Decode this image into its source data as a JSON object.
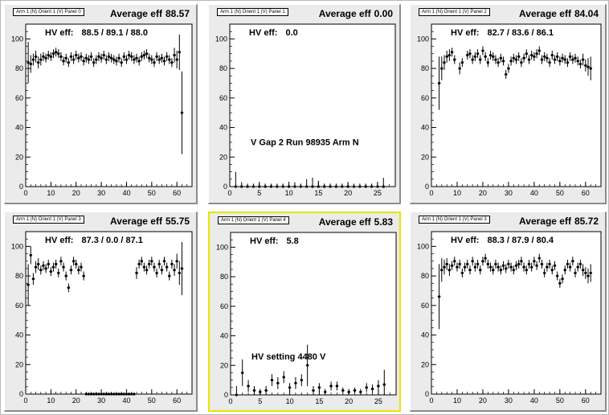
{
  "canvas": {
    "pads": [
      {
        "tag": "Arm 1 (N) Orient 1 (V) Panel 0",
        "average_label": "Average eff",
        "average_value": "88.57",
        "hv_label": "HV eff:",
        "hv_value": "88.5 / 89.1 / 88.0",
        "annotation": "",
        "selected": false,
        "chart_data": {
          "type": "scatter",
          "xlim": [
            0,
            66
          ],
          "ylim": [
            0,
            110
          ],
          "xticks": [
            0,
            10,
            20,
            30,
            40,
            50,
            60
          ],
          "yticks": [
            0,
            20,
            40,
            60,
            80,
            100
          ],
          "x": [
            1,
            2,
            3,
            4,
            5,
            6,
            7,
            8,
            9,
            10,
            11,
            12,
            13,
            14,
            15,
            16,
            17,
            18,
            19,
            20,
            21,
            22,
            23,
            24,
            25,
            26,
            27,
            28,
            29,
            30,
            31,
            32,
            33,
            34,
            35,
            36,
            37,
            38,
            39,
            40,
            41,
            42,
            43,
            44,
            45,
            46,
            47,
            48,
            49,
            50,
            51,
            52,
            53,
            54,
            55,
            56,
            57,
            58,
            59,
            60,
            61,
            62
          ],
          "y": [
            84,
            83,
            86,
            88,
            84,
            86,
            88,
            87,
            89,
            88,
            90,
            91,
            90,
            88,
            85,
            87,
            84,
            88,
            86,
            89,
            87,
            88,
            85,
            87,
            86,
            88,
            84,
            86,
            88,
            87,
            89,
            86,
            88,
            87,
            86,
            85,
            87,
            84,
            88,
            86,
            89,
            88,
            86,
            87,
            85,
            88,
            89,
            90,
            87,
            86,
            84,
            88,
            86,
            87,
            85,
            88,
            86,
            84,
            89,
            86,
            91,
            50
          ],
          "err": [
            14,
            6,
            4,
            4,
            4,
            4,
            3,
            3,
            3,
            3,
            3,
            3,
            3,
            3,
            3,
            3,
            3,
            3,
            3,
            3,
            3,
            3,
            3,
            3,
            3,
            3,
            3,
            3,
            3,
            3,
            3,
            3,
            3,
            3,
            3,
            3,
            3,
            3,
            3,
            3,
            3,
            3,
            3,
            3,
            3,
            3,
            3,
            3,
            3,
            3,
            3,
            3,
            3,
            3,
            3,
            3,
            3,
            3,
            5,
            6,
            12,
            28
          ]
        }
      },
      {
        "tag": "Arm 1 (N) Orient 1 (V) Panel 1",
        "average_label": "Average eff",
        "average_value": "0.00",
        "hv_label": "HV eff:",
        "hv_value": "0.0",
        "annotation": "V Gap 2 Run 98935 Arm N",
        "selected": false,
        "chart_data": {
          "type": "scatter",
          "xlim": [
            0,
            28
          ],
          "ylim": [
            0,
            110
          ],
          "xticks": [
            0,
            5,
            10,
            15,
            20,
            25
          ],
          "yticks": [
            0,
            20,
            40,
            60,
            80,
            100
          ],
          "x": [
            1,
            2,
            3,
            4,
            5,
            6,
            7,
            8,
            9,
            10,
            11,
            12,
            13,
            14,
            15,
            16,
            17,
            18,
            19,
            20,
            21,
            22,
            23,
            24,
            25,
            26
          ],
          "y": [
            0,
            0,
            0,
            0,
            0,
            0,
            0,
            0,
            0,
            0,
            0,
            0,
            0,
            0,
            0,
            0,
            0,
            0,
            0,
            0,
            0,
            0,
            0,
            0,
            0,
            0
          ],
          "err": [
            10,
            3,
            2,
            2,
            2,
            2,
            2,
            2,
            2,
            2,
            3,
            2,
            5,
            6,
            4,
            2,
            2,
            2,
            2,
            2,
            2,
            2,
            2,
            2,
            3,
            6
          ]
        }
      },
      {
        "tag": "Arm 1 (N) Orient 1 (V) Panel 2",
        "average_label": "Average eff",
        "average_value": "84.04",
        "hv_label": "HV eff:",
        "hv_value": "82.7 / 83.6 / 86.1",
        "annotation": "",
        "selected": false,
        "chart_data": {
          "type": "scatter",
          "xlim": [
            0,
            66
          ],
          "ylim": [
            0,
            110
          ],
          "xticks": [
            0,
            10,
            20,
            30,
            40,
            50,
            60
          ],
          "yticks": [
            0,
            20,
            40,
            60,
            80,
            100
          ],
          "x": [
            3,
            4,
            5,
            6,
            7,
            8,
            9,
            11,
            12,
            14,
            15,
            16,
            17,
            18,
            19,
            20,
            21,
            22,
            23,
            24,
            25,
            26,
            27,
            28,
            29,
            30,
            31,
            32,
            33,
            34,
            35,
            36,
            37,
            38,
            39,
            40,
            41,
            42,
            43,
            44,
            45,
            46,
            47,
            48,
            49,
            50,
            51,
            52,
            53,
            54,
            55,
            56,
            57,
            58,
            59,
            60,
            61,
            62
          ],
          "y": [
            70,
            80,
            84,
            88,
            89,
            91,
            86,
            80,
            84,
            89,
            90,
            86,
            88,
            90,
            86,
            92,
            88,
            84,
            89,
            88,
            86,
            84,
            87,
            85,
            76,
            80,
            85,
            87,
            86,
            88,
            84,
            87,
            90,
            86,
            89,
            88,
            90,
            92,
            86,
            88,
            87,
            84,
            89,
            86,
            88,
            85,
            87,
            86,
            84,
            88,
            86,
            87,
            85,
            83,
            86,
            82,
            81,
            80
          ],
          "err": [
            18,
            8,
            5,
            4,
            4,
            3,
            3,
            4,
            3,
            3,
            3,
            3,
            3,
            3,
            3,
            3,
            3,
            3,
            3,
            3,
            3,
            3,
            3,
            3,
            3,
            3,
            3,
            3,
            3,
            3,
            3,
            3,
            3,
            3,
            3,
            3,
            3,
            3,
            3,
            3,
            3,
            3,
            3,
            3,
            3,
            3,
            3,
            3,
            3,
            3,
            3,
            3,
            3,
            3,
            4,
            4,
            6,
            8
          ]
        }
      },
      {
        "tag": "Arm 1 (N) Orient 1 (V) Panel 3",
        "average_label": "Average eff",
        "average_value": "55.75",
        "hv_label": "HV eff:",
        "hv_value": "87.3 / 0.0 / 87.1",
        "annotation": "",
        "selected": false,
        "chart_data": {
          "type": "scatter",
          "xlim": [
            0,
            66
          ],
          "ylim": [
            0,
            110
          ],
          "xticks": [
            0,
            10,
            20,
            30,
            40,
            50,
            60
          ],
          "yticks": [
            0,
            20,
            40,
            60,
            80,
            100
          ],
          "x": [
            1,
            2,
            3,
            4,
            5,
            6,
            7,
            8,
            9,
            10,
            11,
            12,
            13,
            14,
            15,
            16,
            17,
            18,
            19,
            20,
            21,
            22,
            23,
            24,
            25,
            26,
            27,
            28,
            29,
            30,
            31,
            32,
            33,
            34,
            35,
            36,
            37,
            38,
            39,
            40,
            41,
            42,
            43,
            44,
            45,
            46,
            47,
            48,
            49,
            50,
            51,
            52,
            53,
            54,
            55,
            56,
            57,
            58,
            59,
            60,
            61,
            62
          ],
          "y": [
            74,
            94,
            78,
            86,
            88,
            84,
            87,
            85,
            88,
            83,
            86,
            88,
            82,
            90,
            86,
            80,
            72,
            84,
            90,
            88,
            84,
            86,
            80,
            0,
            0,
            0,
            0,
            0,
            0,
            0,
            0,
            0,
            0,
            0,
            0,
            0,
            0,
            0,
            0,
            0,
            0,
            0,
            0,
            82,
            88,
            90,
            86,
            84,
            88,
            90,
            86,
            82,
            88,
            84,
            90,
            86,
            80,
            88,
            84,
            90,
            82,
            85
          ],
          "err": [
            14,
            6,
            4,
            4,
            4,
            3,
            3,
            3,
            3,
            3,
            3,
            3,
            3,
            3,
            3,
            3,
            3,
            3,
            3,
            3,
            3,
            3,
            3,
            1,
            1,
            1,
            1,
            1,
            1,
            1,
            1,
            1,
            1,
            1,
            1,
            1,
            1,
            1,
            1,
            1,
            1,
            1,
            1,
            4,
            3,
            3,
            3,
            3,
            3,
            3,
            3,
            3,
            3,
            3,
            3,
            3,
            3,
            3,
            4,
            5,
            8,
            18
          ]
        }
      },
      {
        "tag": "Arm 1 (N) Orient 1 (V) Panel 4",
        "average_label": "Average eff",
        "average_value": "5.83",
        "hv_label": "HV eff:",
        "hv_value": "5.8",
        "annotation": "HV setting 4480 V",
        "selected": true,
        "chart_data": {
          "type": "scatter",
          "xlim": [
            0,
            28
          ],
          "ylim": [
            0,
            110
          ],
          "xticks": [
            0,
            5,
            10,
            15,
            20,
            25
          ],
          "yticks": [
            0,
            20,
            40,
            60,
            80,
            100
          ],
          "x": [
            1,
            2,
            3,
            4,
            5,
            6,
            7,
            8,
            9,
            10,
            11,
            12,
            13,
            14,
            15,
            16,
            17,
            18,
            19,
            20,
            21,
            22,
            23,
            24,
            25,
            26
          ],
          "y": [
            0,
            15,
            6,
            3,
            2,
            3,
            10,
            8,
            12,
            5,
            8,
            10,
            20,
            3,
            5,
            2,
            6,
            6,
            3,
            2,
            3,
            2,
            5,
            4,
            6,
            7
          ],
          "err": [
            6,
            9,
            4,
            3,
            2,
            3,
            4,
            4,
            4,
            3,
            4,
            4,
            14,
            3,
            3,
            2,
            3,
            3,
            2,
            2,
            2,
            2,
            3,
            3,
            4,
            10
          ]
        }
      },
      {
        "tag": "Arm 1 (N) Orient 1 (V) Panel 3",
        "average_label": "Average eff",
        "average_value": "85.72",
        "hv_label": "HV eff:",
        "hv_value": "88.3 / 87.9 / 80.4",
        "annotation": "",
        "selected": false,
        "chart_data": {
          "type": "scatter",
          "xlim": [
            0,
            66
          ],
          "ylim": [
            0,
            110
          ],
          "xticks": [
            0,
            10,
            20,
            30,
            40,
            50,
            60
          ],
          "yticks": [
            0,
            20,
            40,
            60,
            80,
            100
          ],
          "x": [
            3,
            4,
            5,
            6,
            7,
            8,
            9,
            10,
            11,
            12,
            13,
            14,
            15,
            16,
            17,
            18,
            19,
            20,
            21,
            22,
            23,
            24,
            25,
            26,
            27,
            28,
            29,
            30,
            31,
            32,
            33,
            34,
            35,
            36,
            37,
            38,
            39,
            40,
            41,
            42,
            43,
            44,
            45,
            46,
            47,
            48,
            49,
            50,
            51,
            52,
            53,
            54,
            55,
            56,
            57,
            58,
            59,
            60,
            61,
            62
          ],
          "y": [
            66,
            84,
            86,
            88,
            84,
            87,
            90,
            86,
            88,
            82,
            86,
            88,
            84,
            90,
            86,
            88,
            84,
            90,
            92,
            88,
            86,
            84,
            88,
            86,
            84,
            87,
            85,
            88,
            86,
            84,
            87,
            88,
            90,
            86,
            84,
            88,
            86,
            90,
            87,
            92,
            88,
            82,
            86,
            88,
            84,
            87,
            80,
            75,
            78,
            84,
            88,
            86,
            90,
            82,
            86,
            88,
            84,
            82,
            80,
            82
          ],
          "err": [
            22,
            8,
            5,
            4,
            4,
            3,
            3,
            3,
            3,
            3,
            3,
            3,
            3,
            3,
            3,
            3,
            3,
            3,
            3,
            3,
            3,
            3,
            3,
            3,
            3,
            3,
            3,
            3,
            3,
            3,
            3,
            3,
            3,
            3,
            3,
            3,
            3,
            3,
            3,
            3,
            3,
            3,
            3,
            3,
            3,
            3,
            3,
            3,
            3,
            3,
            3,
            3,
            3,
            3,
            3,
            3,
            4,
            4,
            5,
            6
          ]
        }
      }
    ]
  }
}
